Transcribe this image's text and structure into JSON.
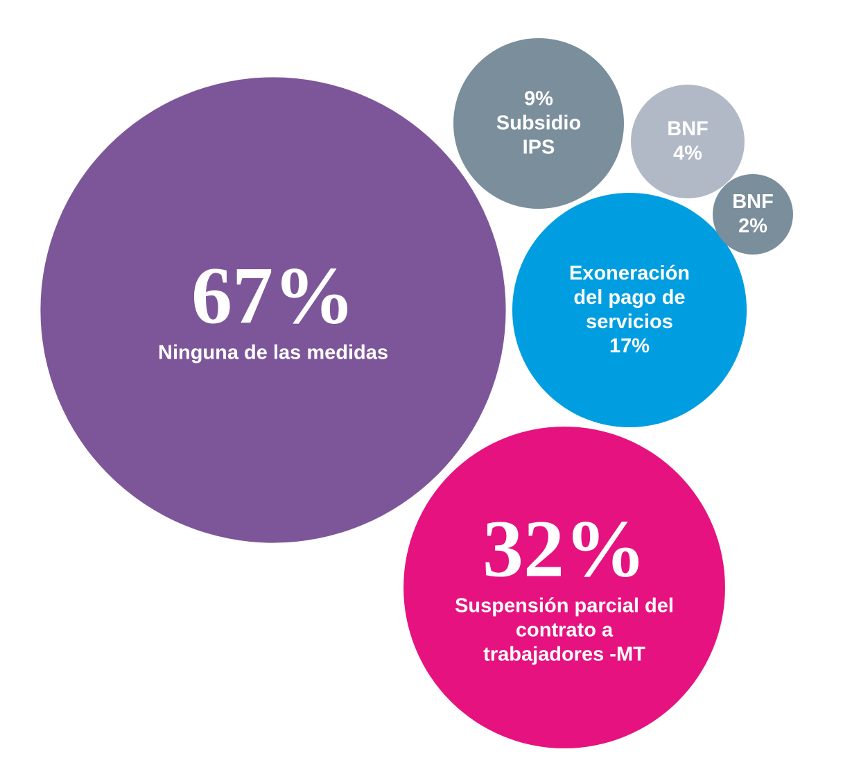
{
  "chart_data": {
    "type": "bubble",
    "categories": [
      "Ninguna de las medidas",
      "Suspensión parcial del contrato a trabajadores -MT",
      "Exoneración del pago de servicios",
      "Subsidio IPS",
      "BNF",
      "BNF"
    ],
    "values": [
      67,
      32,
      17,
      9,
      4,
      2
    ],
    "value_labels": [
      "67%",
      "32%",
      "17%",
      "9%",
      "4%",
      "2%"
    ],
    "colors": [
      "#7d5699",
      "#e5127f",
      "#009ee0",
      "#7a8e9c",
      "#b1b9c6",
      "#7a8e9c"
    ]
  }
}
